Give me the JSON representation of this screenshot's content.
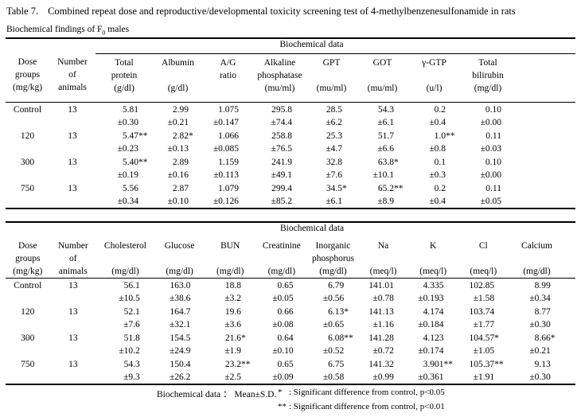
{
  "title": {
    "label": "Table 7.",
    "text": "Combined repeat dose and reproductive/developmental toxicity screening test of 4-methylbenzenesulfonamide in rats"
  },
  "subtitle": {
    "prefix": "Biochemical findings of F",
    "sub": "0",
    "suffix": " males"
  },
  "tables": [
    {
      "spanner": "Biochemical data",
      "columns": [
        {
          "lines": [
            "Dose",
            "groups",
            "(mg/kg)"
          ]
        },
        {
          "lines": [
            "Number",
            "of",
            "animals"
          ]
        },
        {
          "lines": [
            "Total",
            "protein",
            "(g/dl)"
          ]
        },
        {
          "lines": [
            "Albumin",
            "",
            "(g/dl)"
          ]
        },
        {
          "lines": [
            "A/G",
            "ratio",
            ""
          ]
        },
        {
          "lines": [
            "Alkaline",
            "phosphatase",
            "(mu/ml)"
          ]
        },
        {
          "lines": [
            "GPT",
            "",
            "(mu/ml)"
          ]
        },
        {
          "lines": [
            "GOT",
            "",
            "(mu/ml)"
          ]
        },
        {
          "lines": [
            "γ-GTP",
            "",
            "(u/l)"
          ]
        },
        {
          "lines": [
            "Total",
            "bilirubin",
            "(mg/dl)"
          ]
        }
      ],
      "rows": [
        {
          "dose": "Control",
          "n": "13",
          "values": [
            [
              "5.81",
              "±0.30"
            ],
            [
              "2.99",
              "±0.21"
            ],
            [
              "1.075",
              "±0.147"
            ],
            [
              "295.8",
              "±74.4"
            ],
            [
              "28.5",
              "±6.2"
            ],
            [
              "54.3",
              "±6.1"
            ],
            [
              "0.2",
              "±0.4"
            ],
            [
              "0.10",
              "±0.00"
            ]
          ]
        },
        {
          "dose": "120",
          "n": "13",
          "values": [
            [
              "5.47**",
              "±0.23"
            ],
            [
              "2.82*",
              "±0.13"
            ],
            [
              "1.066",
              "±0.085"
            ],
            [
              "258.8",
              "±76.5"
            ],
            [
              "25.3",
              "±4.7"
            ],
            [
              "51.7",
              "±6.6"
            ],
            [
              "1.0**",
              "±0.8"
            ],
            [
              "0.11",
              "±0.03"
            ]
          ]
        },
        {
          "dose": "300",
          "n": "13",
          "values": [
            [
              "5.40**",
              "±0.19"
            ],
            [
              "2.89",
              "±0.16"
            ],
            [
              "1.159",
              "±0.113"
            ],
            [
              "241.9",
              "±49.1"
            ],
            [
              "32.8",
              "±7.6"
            ],
            [
              "63.8*",
              "±10.1"
            ],
            [
              "0.1",
              "±0.3"
            ],
            [
              "0.10",
              "±0.00"
            ]
          ]
        },
        {
          "dose": "750",
          "n": "13",
          "values": [
            [
              "5.56",
              "±0.34"
            ],
            [
              "2.87",
              "±0.10"
            ],
            [
              "1.079",
              "±0.126"
            ],
            [
              "299.4",
              "±85.2"
            ],
            [
              "34.5*",
              "±6.1"
            ],
            [
              "65.2**",
              "±8.9"
            ],
            [
              "0.2",
              "±0.4"
            ],
            [
              "0.11",
              "±0.05"
            ]
          ]
        }
      ]
    },
    {
      "spanner": "Biochemical data",
      "columns": [
        {
          "lines": [
            "Dose",
            "groups",
            "(mg/kg)"
          ]
        },
        {
          "lines": [
            "Number",
            "of",
            "animals"
          ]
        },
        {
          "lines": [
            "Cholesterol",
            "",
            "(mg/dl)"
          ]
        },
        {
          "lines": [
            "Glucose",
            "",
            "(mg/dl)"
          ]
        },
        {
          "lines": [
            "BUN",
            "",
            "(mg/dl)"
          ]
        },
        {
          "lines": [
            "Creatinine",
            "",
            "(mg/dl)"
          ]
        },
        {
          "lines": [
            "Inorganic",
            "phosphorus",
            "(mg/dl)"
          ]
        },
        {
          "lines": [
            "Na",
            "",
            "(meq/l)"
          ]
        },
        {
          "lines": [
            "K",
            "",
            "(meq/l)"
          ]
        },
        {
          "lines": [
            "Cl",
            "",
            "(meq/l)"
          ]
        },
        {
          "lines": [
            "Calcium",
            "",
            "(mg/dl)"
          ]
        }
      ],
      "rows": [
        {
          "dose": "Control",
          "n": "13",
          "values": [
            [
              "56.1",
              "±10.5"
            ],
            [
              "163.0",
              "±38.6"
            ],
            [
              "18.8",
              "±3.2"
            ],
            [
              "0.65",
              "±0.05"
            ],
            [
              "6.79",
              "±0.56"
            ],
            [
              "141.01",
              "±0.78"
            ],
            [
              "4.335",
              "±0.193"
            ],
            [
              "102.85",
              "±1.58"
            ],
            [
              "8.99",
              "±0.34"
            ]
          ]
        },
        {
          "dose": "120",
          "n": "13",
          "values": [
            [
              "52.1",
              "±7.6"
            ],
            [
              "164.7",
              "±32.1"
            ],
            [
              "19.6",
              "±3.6"
            ],
            [
              "0.66",
              "±0.08"
            ],
            [
              "6.13*",
              "±0.65"
            ],
            [
              "141.13",
              "±1.16"
            ],
            [
              "4.174",
              "±0.184"
            ],
            [
              "103.74",
              "±1.77"
            ],
            [
              "8.77",
              "±0.30"
            ]
          ]
        },
        {
          "dose": "300",
          "n": "13",
          "values": [
            [
              "51.8",
              "±10.2"
            ],
            [
              "154.5",
              "±24.9"
            ],
            [
              "21.6*",
              "±1.9"
            ],
            [
              "0.64",
              "±0.10"
            ],
            [
              "6.08**",
              "±0.52"
            ],
            [
              "141.28",
              "±0.72"
            ],
            [
              "4.123",
              "±0.174"
            ],
            [
              "104.57*",
              "±1.05"
            ],
            [
              "8.66*",
              "±0.21"
            ]
          ]
        },
        {
          "dose": "750",
          "n": "13",
          "values": [
            [
              "54.3",
              "±9.3"
            ],
            [
              "150.4",
              "±26.2"
            ],
            [
              "23.2**",
              "±2.5"
            ],
            [
              "0.65",
              "±0.09"
            ],
            [
              "6.75",
              "±0.58"
            ],
            [
              "141.32",
              "±0.99"
            ],
            [
              "3.901**",
              "±0.361"
            ],
            [
              "105.37**",
              "±1.91"
            ],
            [
              "9.13",
              "±0.30"
            ]
          ]
        }
      ]
    }
  ],
  "footer": {
    "legend": "Biochemical data ： Mean±S.D.",
    "notes": [
      {
        "marker": "*",
        "text": ": Significant difference from control, p<0.05"
      },
      {
        "marker": "**",
        "text": ": Significant difference from control, p<0.01"
      }
    ]
  }
}
